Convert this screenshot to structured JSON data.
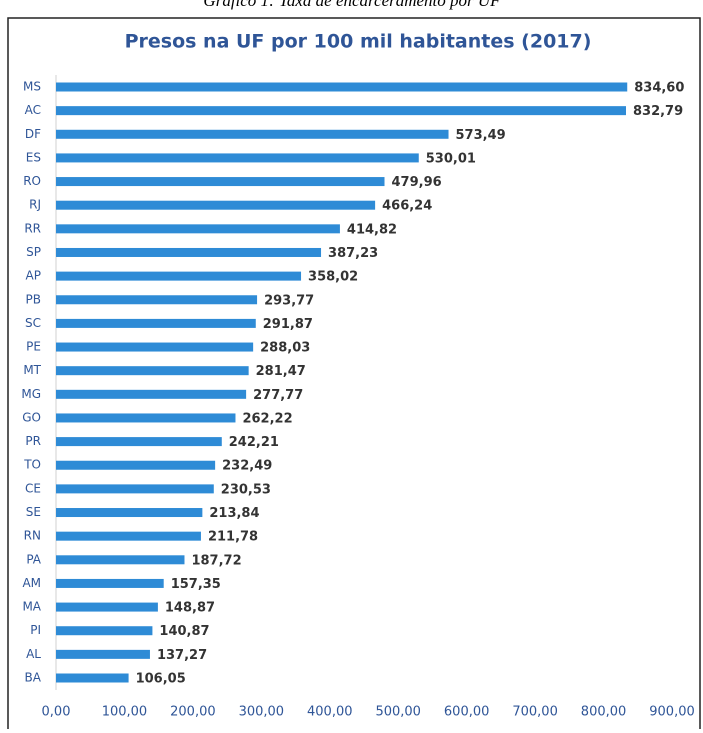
{
  "caption": "Gráfico 1: Taxa de encarceramento por UF",
  "chart_data": {
    "type": "bar",
    "orientation": "horizontal",
    "title": "Presos na UF por 100 mil habitantes (2017)",
    "categories": [
      "MS",
      "AC",
      "DF",
      "ES",
      "RO",
      "RJ",
      "RR",
      "SP",
      "AP",
      "PB",
      "SC",
      "PE",
      "MT",
      "MG",
      "GO",
      "PR",
      "TO",
      "CE",
      "SE",
      "RN",
      "PA",
      "AM",
      "MA",
      "PI",
      "AL",
      "BA"
    ],
    "values": [
      834.6,
      832.79,
      573.49,
      530.01,
      479.96,
      466.24,
      414.82,
      387.23,
      358.02,
      293.77,
      291.87,
      288.03,
      281.47,
      277.77,
      262.22,
      242.21,
      232.49,
      230.53,
      213.84,
      211.78,
      187.72,
      157.35,
      148.87,
      140.87,
      137.27,
      106.05
    ],
    "value_labels": [
      "834,60",
      "832,79",
      "573,49",
      "530,01",
      "479,96",
      "466,24",
      "414,82",
      "387,23",
      "358,02",
      "293,77",
      "291,87",
      "288,03",
      "281,47",
      "277,77",
      "262,22",
      "242,21",
      "232,49",
      "230,53",
      "213,84",
      "211,78",
      "187,72",
      "157,35",
      "148,87",
      "140,87",
      "137,27",
      "106,05"
    ],
    "color": "#2e8bd6",
    "xlim": [
      0,
      900
    ],
    "xticks": [
      {
        "value": 0,
        "label": "0,00"
      },
      {
        "value": 100,
        "label": "100,00"
      },
      {
        "value": 200,
        "label": "200,00"
      },
      {
        "value": 300,
        "label": "300,00"
      },
      {
        "value": 400,
        "label": "400,00"
      },
      {
        "value": 500,
        "label": "500,00"
      },
      {
        "value": 600,
        "label": "600,00"
      },
      {
        "value": 700,
        "label": "700,00"
      },
      {
        "value": 800,
        "label": "800,00"
      },
      {
        "value": 900,
        "label": "900,00"
      }
    ],
    "grid": false
  }
}
